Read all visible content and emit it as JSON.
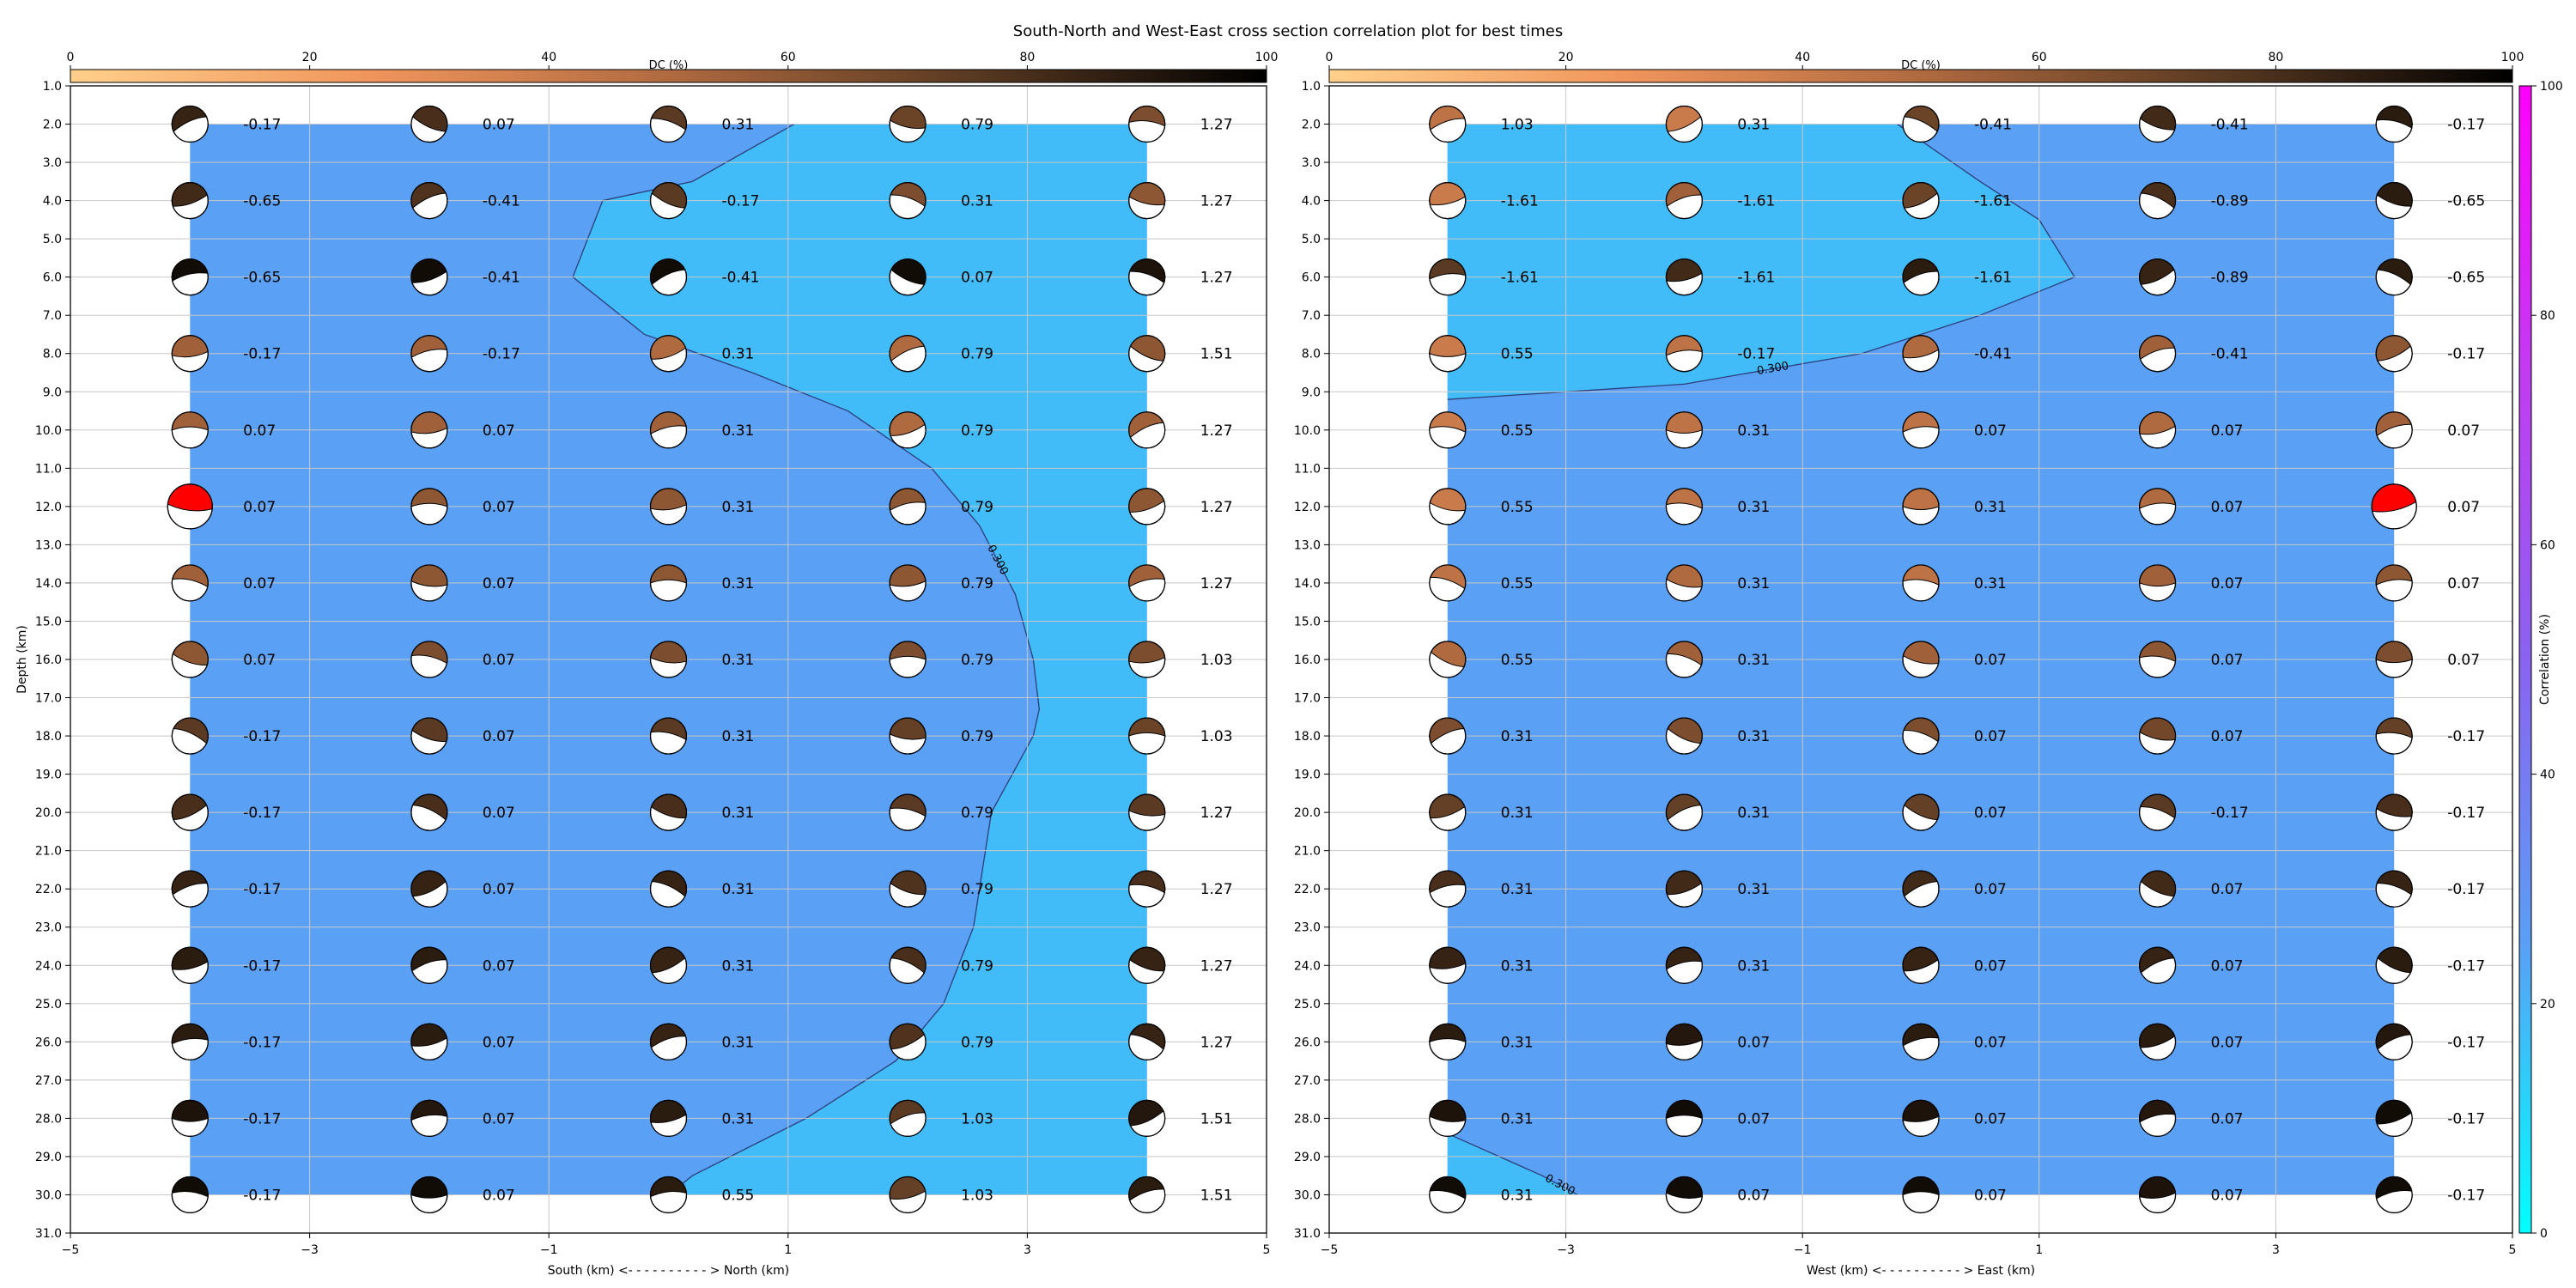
{
  "title": "South-North and West-East cross section correlation plot for best times",
  "colors": {
    "region_low": "#5aa0f5",
    "region_high": "#41bcf9",
    "grid": "#c8c8c8",
    "highlight_beachball": "#ff0000",
    "correlation_colormap": [
      "#00ffff",
      "#5aa0f5",
      "#8a63f0",
      "#c23cf2",
      "#ff00ff"
    ],
    "dc_colormap": [
      "#ffd08a",
      "#f0955c",
      "#b06a40",
      "#5a3a22",
      "#000000"
    ]
  },
  "colorbar_correlation": {
    "label": "Correlation (%)",
    "ticks": [
      "0",
      "20",
      "40",
      "60",
      "80",
      "100"
    ],
    "range": [
      0,
      100
    ]
  },
  "chart_data": [
    {
      "type": "scatter",
      "subtype": "beachball correlation cross-section",
      "xlabel": "South (km) <- - - - - - - - - - > North (km)",
      "ylabel": "Depth (km)",
      "xlim": [
        -5,
        5
      ],
      "ylim": [
        31,
        1
      ],
      "x_ticks": [
        "−5",
        "−3",
        "−1",
        "1",
        "3",
        "5"
      ],
      "y_ticks": [
        "1.0",
        "2.0",
        "3.0",
        "4.0",
        "5.0",
        "6.0",
        "7.0",
        "8.0",
        "9.0",
        "10.0",
        "11.0",
        "12.0",
        "13.0",
        "14.0",
        "15.0",
        "16.0",
        "17.0",
        "18.0",
        "19.0",
        "20.0",
        "21.0",
        "22.0",
        "23.0",
        "24.0",
        "25.0",
        "26.0",
        "27.0",
        "28.0",
        "29.0",
        "30.0",
        "31.0"
      ],
      "grid": true,
      "colorbar": {
        "label": "DC (%)",
        "ticks": [
          "0",
          "20",
          "40",
          "60",
          "80",
          "100"
        ],
        "range": [
          0,
          100
        ],
        "placement": "top"
      },
      "x_positions": [
        -4,
        -2,
        0,
        2,
        4
      ],
      "depths": [
        2,
        4,
        6,
        8,
        10,
        12,
        14,
        16,
        18,
        20,
        22,
        24,
        26,
        28,
        30
      ],
      "labels": [
        [
          "-0.17",
          "0.07",
          "0.31",
          "0.79",
          "1.27"
        ],
        [
          "-0.65",
          "-0.41",
          "-0.17",
          "0.31",
          "1.27"
        ],
        [
          "-0.65",
          "-0.41",
          "-0.41",
          "0.07",
          "1.27"
        ],
        [
          "-0.17",
          "-0.17",
          "0.31",
          "0.79",
          "1.51"
        ],
        [
          "0.07",
          "0.07",
          "0.31",
          "0.79",
          "1.27"
        ],
        [
          "0.07",
          "0.07",
          "0.31",
          "0.79",
          "1.27"
        ],
        [
          "0.07",
          "0.07",
          "0.31",
          "0.79",
          "1.27"
        ],
        [
          "0.07",
          "0.07",
          "0.31",
          "0.79",
          "1.03"
        ],
        [
          "-0.17",
          "0.07",
          "0.31",
          "0.79",
          "1.03"
        ],
        [
          "-0.17",
          "0.07",
          "0.31",
          "0.79",
          "1.27"
        ],
        [
          "-0.17",
          "0.07",
          "0.31",
          "0.79",
          "1.27"
        ],
        [
          "-0.17",
          "0.07",
          "0.31",
          "0.79",
          "1.27"
        ],
        [
          "-0.17",
          "0.07",
          "0.31",
          "0.79",
          "1.27"
        ],
        [
          "-0.17",
          "0.07",
          "0.31",
          "1.03",
          "1.51"
        ],
        [
          "-0.17",
          "0.07",
          "0.55",
          "1.03",
          "1.51"
        ]
      ],
      "dc": [
        [
          85,
          80,
          75,
          70,
          65
        ],
        [
          82,
          78,
          75,
          65,
          60
        ],
        [
          95,
          95,
          95,
          95,
          92
        ],
        [
          55,
          55,
          50,
          50,
          60
        ],
        [
          55,
          55,
          55,
          50,
          55
        ],
        [
          null,
          60,
          60,
          60,
          60
        ],
        [
          55,
          60,
          60,
          60,
          55
        ],
        [
          60,
          65,
          65,
          65,
          65
        ],
        [
          75,
          75,
          75,
          72,
          70
        ],
        [
          80,
          80,
          80,
          75,
          75
        ],
        [
          85,
          85,
          85,
          78,
          80
        ],
        [
          88,
          88,
          85,
          80,
          85
        ],
        [
          88,
          88,
          85,
          78,
          85
        ],
        [
          92,
          90,
          88,
          75,
          90
        ],
        [
          95,
          95,
          88,
          72,
          88
        ]
      ],
      "highlight": [
        [
          12,
          -4
        ]
      ],
      "contour": {
        "level_label": "0.300",
        "points": [
          [
            1.05,
            2
          ],
          [
            0.2,
            3.5
          ],
          [
            -0.55,
            4
          ],
          [
            -0.8,
            6
          ],
          [
            -0.2,
            7.5
          ],
          [
            0.7,
            8.5
          ],
          [
            1.5,
            9.5
          ],
          [
            2.2,
            11
          ],
          [
            2.6,
            12.5
          ],
          [
            2.9,
            14.3
          ],
          [
            3.05,
            16
          ],
          [
            3.1,
            17.3
          ],
          [
            3.05,
            18
          ],
          [
            2.7,
            20
          ],
          [
            2.6,
            22
          ],
          [
            2.55,
            23
          ],
          [
            2.3,
            25
          ],
          [
            1.9,
            26.5
          ],
          [
            1.15,
            28
          ],
          [
            0.2,
            29.5
          ],
          [
            0,
            30
          ]
        ]
      }
    },
    {
      "type": "scatter",
      "subtype": "beachball correlation cross-section",
      "xlabel": "West (km) <- - - - - - - - - - > East (km)",
      "ylabel": "",
      "xlim": [
        -5,
        5
      ],
      "ylim": [
        31,
        1
      ],
      "x_ticks": [
        "−5",
        "−3",
        "−1",
        "1",
        "3",
        "5"
      ],
      "y_ticks": [
        "1.0",
        "2.0",
        "3.0",
        "4.0",
        "5.0",
        "6.0",
        "7.0",
        "8.0",
        "9.0",
        "10.0",
        "11.0",
        "12.0",
        "13.0",
        "14.0",
        "15.0",
        "16.0",
        "17.0",
        "18.0",
        "19.0",
        "20.0",
        "21.0",
        "22.0",
        "23.0",
        "24.0",
        "25.0",
        "26.0",
        "27.0",
        "28.0",
        "29.0",
        "30.0",
        "31.0"
      ],
      "grid": true,
      "colorbar": {
        "label": "DC (%)",
        "ticks": [
          "0",
          "20",
          "40",
          "60",
          "80",
          "100"
        ],
        "range": [
          0,
          100
        ],
        "placement": "top"
      },
      "x_positions": [
        -4,
        -2,
        0,
        2,
        4
      ],
      "depths": [
        2,
        4,
        6,
        8,
        10,
        12,
        14,
        16,
        18,
        20,
        22,
        24,
        26,
        28,
        30
      ],
      "labels": [
        [
          "1.03",
          "0.31",
          "-0.41",
          "-0.41",
          "-0.17"
        ],
        [
          "-1.61",
          "-1.61",
          "-1.61",
          "-0.89",
          "-0.65"
        ],
        [
          "-1.61",
          "-1.61",
          "-1.61",
          "-0.89",
          "-0.65"
        ],
        [
          "0.55",
          "-0.17",
          "-0.41",
          "-0.41",
          "-0.17"
        ],
        [
          "0.55",
          "0.31",
          "0.07",
          "0.07",
          "0.07"
        ],
        [
          "0.55",
          "0.31",
          "0.31",
          "0.07",
          "0.07"
        ],
        [
          "0.55",
          "0.31",
          "0.31",
          "0.07",
          "0.07"
        ],
        [
          "0.55",
          "0.31",
          "0.07",
          "0.07",
          "0.07"
        ],
        [
          "0.31",
          "0.31",
          "0.07",
          "0.07",
          "-0.17"
        ],
        [
          "0.31",
          "0.31",
          "0.07",
          "-0.17",
          "-0.17"
        ],
        [
          "0.31",
          "0.31",
          "0.07",
          "0.07",
          "-0.17"
        ],
        [
          "0.31",
          "0.31",
          "0.07",
          "0.07",
          "-0.17"
        ],
        [
          "0.31",
          "0.07",
          "0.07",
          "0.07",
          "-0.17"
        ],
        [
          "0.31",
          "0.07",
          "0.07",
          "0.07",
          "-0.17"
        ],
        [
          "0.31",
          "0.07",
          "0.07",
          "0.07",
          "-0.17"
        ]
      ],
      "dc": [
        [
          45,
          40,
          70,
          82,
          88
        ],
        [
          40,
          55,
          70,
          80,
          88
        ],
        [
          75,
          82,
          88,
          85,
          88
        ],
        [
          40,
          45,
          50,
          55,
          60
        ],
        [
          40,
          45,
          45,
          50,
          55
        ],
        [
          40,
          45,
          45,
          50,
          null
        ],
        [
          45,
          50,
          45,
          55,
          60
        ],
        [
          50,
          55,
          55,
          60,
          65
        ],
        [
          65,
          65,
          65,
          68,
          72
        ],
        [
          72,
          72,
          72,
          75,
          80
        ],
        [
          80,
          82,
          82,
          82,
          85
        ],
        [
          85,
          85,
          85,
          85,
          88
        ],
        [
          88,
          90,
          88,
          88,
          90
        ],
        [
          92,
          95,
          92,
          90,
          95
        ],
        [
          95,
          95,
          95,
          92,
          95
        ]
      ],
      "highlight": [
        [
          12,
          4
        ]
      ],
      "contours": [
        {
          "level_label": "0.300",
          "points": [
            [
              -0.2,
              2
            ],
            [
              0.5,
              3.5
            ],
            [
              1,
              4.5
            ],
            [
              1.3,
              6
            ],
            [
              0.5,
              7
            ],
            [
              -0.5,
              8
            ],
            [
              -2,
              8.8
            ],
            [
              -4,
              9.2
            ]
          ]
        },
        {
          "level_label": "0.300",
          "points": [
            [
              -4,
              28.4
            ],
            [
              -3.2,
              29.5
            ],
            [
              -2.9,
              30
            ]
          ]
        }
      ]
    }
  ]
}
